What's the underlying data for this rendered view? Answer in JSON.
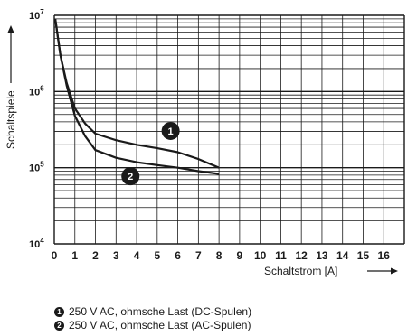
{
  "chart_data": {
    "type": "line",
    "xlabel": "Schaltstrom [A]",
    "ylabel": "Schaltspiele",
    "xlim": [
      0,
      17
    ],
    "ylim": [
      10000,
      10000000
    ],
    "yscale": "log",
    "grid": true,
    "x_ticks": [
      "0",
      "1",
      "2",
      "3",
      "4",
      "5",
      "6",
      "7",
      "8",
      "9",
      "10",
      "11",
      "12",
      "13",
      "14",
      "15",
      "16"
    ],
    "y_ticks": [
      {
        "base": "10",
        "exp": "4",
        "value": 10000
      },
      {
        "base": "10",
        "exp": "5",
        "value": 100000
      },
      {
        "base": "10",
        "exp": "6",
        "value": 1000000
      },
      {
        "base": "10",
        "exp": "7",
        "value": 10000000
      }
    ],
    "series": [
      {
        "name": "250 V AC, ohmsche Last (DC-Spulen)",
        "marker": "1",
        "x": [
          0.05,
          0.3,
          0.6,
          1.0,
          1.5,
          2.0,
          3.0,
          4.0,
          5.0,
          6.0,
          7.0,
          8.0
        ],
        "y": [
          9000000,
          3000000,
          1300000,
          600000,
          380000,
          280000,
          230000,
          200000,
          180000,
          160000,
          130000,
          100000
        ]
      },
      {
        "name": "250 V AC, ohmsche Last (AC-Spulen)",
        "marker": "2",
        "x": [
          0.05,
          0.3,
          0.6,
          1.0,
          1.5,
          2.0,
          3.0,
          4.0,
          5.0,
          6.0,
          7.0,
          8.0
        ],
        "y": [
          9000000,
          3000000,
          1200000,
          480000,
          260000,
          170000,
          135000,
          118000,
          108000,
          100000,
          90000,
          83000
        ]
      }
    ],
    "colors": {
      "line": "#1a1a1a",
      "grid": "#1a1a1a",
      "marker_fill": "#1a1a1a",
      "marker_text": "#ffffff"
    }
  },
  "legend": [
    {
      "marker": "1",
      "label": "250 V AC, ohmsche Last (DC-Spulen)"
    },
    {
      "marker": "2",
      "label": "250 V AC, ohmsche Last (AC-Spulen)"
    }
  ]
}
